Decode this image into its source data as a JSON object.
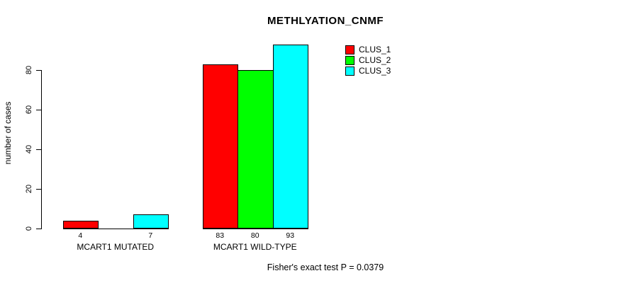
{
  "chart_data": {
    "type": "bar",
    "title": "METHLYATION_CNMF",
    "xlabel": "",
    "ylabel": "number of cases",
    "categories": [
      "MCART1 MUTATED",
      "MCART1 WILD-TYPE"
    ],
    "series": [
      {
        "name": "CLUS_1",
        "color": "#FF0000",
        "values": [
          4,
          83
        ]
      },
      {
        "name": "CLUS_2",
        "color": "#00FF00",
        "values": [
          0,
          80
        ]
      },
      {
        "name": "CLUS_3",
        "color": "#00FFFF",
        "values": [
          7,
          93
        ]
      }
    ],
    "yticks": [
      0,
      20,
      40,
      60,
      80
    ],
    "ylim": [
      0,
      93
    ],
    "grid": false,
    "legend_position": "top-right",
    "bar_value_labels": [
      [
        "4",
        "83"
      ],
      [
        "",
        "80"
      ],
      [
        "7",
        "93"
      ]
    ],
    "annotation": "Fisher's exact test P = 0.0379"
  }
}
